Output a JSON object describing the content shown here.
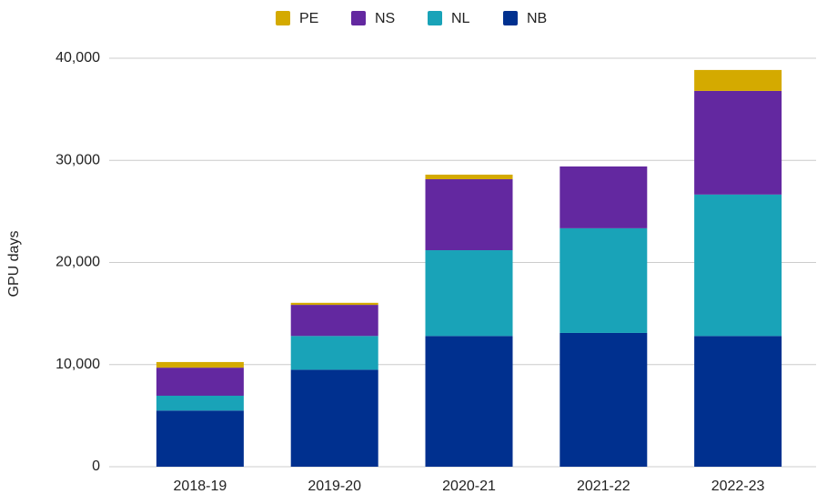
{
  "chart_data": {
    "type": "stacked_bar",
    "y_label": "GPU days",
    "categories": [
      "2018-19",
      "2019-20",
      "2020-21",
      "2021-22",
      "2022-23"
    ],
    "series": [
      {
        "name": "PE",
        "color": "#d4aa00",
        "values": [
          550,
          200,
          450,
          0,
          2050
        ]
      },
      {
        "name": "NS",
        "color": "#6328a0",
        "values": [
          2750,
          3050,
          6950,
          6050,
          10150
        ]
      },
      {
        "name": "NL",
        "color": "#19a3b8",
        "values": [
          1450,
          3300,
          8400,
          10250,
          13850
        ]
      },
      {
        "name": "NB",
        "color": "#00308f",
        "values": [
          5500,
          9500,
          12800,
          13100,
          12800
        ]
      }
    ],
    "ylim": [
      0,
      40000
    ],
    "yticks": [
      0,
      {
        "value": 10000,
        "label": "10,000"
      },
      {
        "value": 20000,
        "label": "20,000"
      },
      {
        "value": 30000,
        "label": "30,000"
      },
      {
        "value": 40000,
        "label": "40,000"
      }
    ],
    "grid": true,
    "legend": "top"
  }
}
